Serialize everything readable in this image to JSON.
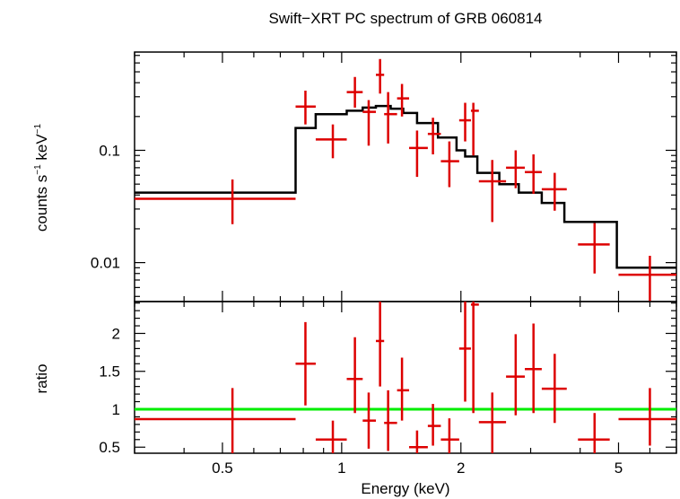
{
  "title": "Swift−XRT PC spectrum of GRB 060814",
  "chart_data": [
    {
      "type": "line",
      "panel": "spectrum",
      "title": "Swift−XRT PC spectrum of GRB 060814",
      "xlabel": "Energy (keV)",
      "ylabel_main": "counts s",
      "ylabel_sup1": "−1",
      "ylabel_mid": " keV",
      "ylabel_sup2": "−1",
      "xscale": "log",
      "yscale": "log",
      "xlim": [
        0.3,
        7.0
      ],
      "ylim": [
        0.0045,
        0.75
      ],
      "yticks_major": [
        {
          "value": 0.01,
          "label": "0.01"
        },
        {
          "value": 0.1,
          "label": "0.1"
        }
      ],
      "model_color": "#000000",
      "data_color": "#dd0000",
      "model_steps": [
        {
          "x0": 0.3,
          "x1": 0.765,
          "y": 0.042
        },
        {
          "x0": 0.765,
          "x1": 0.86,
          "y": 0.158
        },
        {
          "x0": 0.86,
          "x1": 1.03,
          "y": 0.21
        },
        {
          "x0": 1.03,
          "x1": 1.13,
          "y": 0.225
        },
        {
          "x0": 1.13,
          "x1": 1.22,
          "y": 0.24
        },
        {
          "x0": 1.22,
          "x1": 1.33,
          "y": 0.248
        },
        {
          "x0": 1.33,
          "x1": 1.43,
          "y": 0.235
        },
        {
          "x0": 1.43,
          "x1": 1.55,
          "y": 0.215
        },
        {
          "x0": 1.55,
          "x1": 1.75,
          "y": 0.175
        },
        {
          "x0": 1.75,
          "x1": 1.95,
          "y": 0.13
        },
        {
          "x0": 1.95,
          "x1": 2.05,
          "y": 0.1
        },
        {
          "x0": 2.05,
          "x1": 2.2,
          "y": 0.088
        },
        {
          "x0": 2.2,
          "x1": 2.5,
          "y": 0.063
        },
        {
          "x0": 2.5,
          "x1": 2.8,
          "y": 0.05
        },
        {
          "x0": 2.8,
          "x1": 3.2,
          "y": 0.042
        },
        {
          "x0": 3.2,
          "x1": 3.65,
          "y": 0.034
        },
        {
          "x0": 3.65,
          "x1": 4.95,
          "y": 0.023
        },
        {
          "x0": 4.95,
          "x1": 7.0,
          "y": 0.009
        }
      ],
      "points": [
        {
          "x": 0.53,
          "xlo": 0.3,
          "xhi": 0.765,
          "y": 0.037,
          "ylo": 0.022,
          "yhi": 0.055
        },
        {
          "x": 0.81,
          "xlo": 0.765,
          "xhi": 0.86,
          "y": 0.245,
          "ylo": 0.17,
          "yhi": 0.34
        },
        {
          "x": 0.95,
          "xlo": 0.86,
          "xhi": 1.03,
          "y": 0.125,
          "ylo": 0.085,
          "yhi": 0.17
        },
        {
          "x": 1.08,
          "xlo": 1.03,
          "xhi": 1.13,
          "y": 0.33,
          "ylo": 0.24,
          "yhi": 0.45
        },
        {
          "x": 1.17,
          "xlo": 1.13,
          "xhi": 1.22,
          "y": 0.22,
          "ylo": 0.11,
          "yhi": 0.28
        },
        {
          "x": 1.25,
          "xlo": 1.22,
          "xhi": 1.28,
          "y": 0.47,
          "ylo": 0.32,
          "yhi": 0.65
        },
        {
          "x": 1.31,
          "xlo": 1.28,
          "xhi": 1.38,
          "y": 0.21,
          "ylo": 0.115,
          "yhi": 0.33
        },
        {
          "x": 1.42,
          "xlo": 1.38,
          "xhi": 1.48,
          "y": 0.29,
          "ylo": 0.2,
          "yhi": 0.39
        },
        {
          "x": 1.55,
          "xlo": 1.48,
          "xhi": 1.65,
          "y": 0.105,
          "ylo": 0.058,
          "yhi": 0.15
        },
        {
          "x": 1.7,
          "xlo": 1.65,
          "xhi": 1.78,
          "y": 0.14,
          "ylo": 0.092,
          "yhi": 0.195
        },
        {
          "x": 1.87,
          "xlo": 1.78,
          "xhi": 1.98,
          "y": 0.08,
          "ylo": 0.047,
          "yhi": 0.12
        },
        {
          "x": 2.05,
          "xlo": 1.98,
          "xhi": 2.12,
          "y": 0.185,
          "ylo": 0.12,
          "yhi": 0.265
        },
        {
          "x": 2.15,
          "xlo": 2.12,
          "xhi": 2.22,
          "y": 0.225,
          "ylo": 0.09,
          "yhi": 0.265
        },
        {
          "x": 2.4,
          "xlo": 2.22,
          "xhi": 2.6,
          "y": 0.053,
          "ylo": 0.023,
          "yhi": 0.082
        },
        {
          "x": 2.75,
          "xlo": 2.6,
          "xhi": 2.9,
          "y": 0.07,
          "ylo": 0.046,
          "yhi": 0.1
        },
        {
          "x": 3.05,
          "xlo": 2.9,
          "xhi": 3.2,
          "y": 0.064,
          "ylo": 0.041,
          "yhi": 0.092
        },
        {
          "x": 3.45,
          "xlo": 3.2,
          "xhi": 3.7,
          "y": 0.045,
          "ylo": 0.029,
          "yhi": 0.063
        },
        {
          "x": 4.35,
          "xlo": 3.95,
          "xhi": 4.75,
          "y": 0.0145,
          "ylo": 0.008,
          "yhi": 0.0225
        },
        {
          "x": 6.0,
          "xlo": 5.0,
          "xhi": 7.0,
          "y": 0.0078,
          "ylo": 0.0045,
          "yhi": 0.0115
        }
      ]
    },
    {
      "type": "scatter",
      "panel": "ratio",
      "xlabel": "Energy (keV)",
      "ylabel": "ratio",
      "xscale": "log",
      "yscale": "linear",
      "xlim": [
        0.3,
        7.0
      ],
      "ylim": [
        0.42,
        2.42
      ],
      "yticks_major": [
        {
          "value": 0.5,
          "label": "0.5"
        },
        {
          "value": 1,
          "label": "1"
        },
        {
          "value": 1.5,
          "label": "1.5"
        },
        {
          "value": 2,
          "label": "2"
        }
      ],
      "reference_line": {
        "y": 1.0,
        "color": "#00ee00"
      },
      "points": [
        {
          "x": 0.53,
          "xlo": 0.3,
          "xhi": 0.765,
          "y": 0.87,
          "ylo": 0.42,
          "yhi": 1.28
        },
        {
          "x": 0.81,
          "xlo": 0.765,
          "xhi": 0.86,
          "y": 1.6,
          "ylo": 1.05,
          "yhi": 2.15
        },
        {
          "x": 0.95,
          "xlo": 0.86,
          "xhi": 1.03,
          "y": 0.6,
          "ylo": 0.42,
          "yhi": 0.85
        },
        {
          "x": 1.08,
          "xlo": 1.03,
          "xhi": 1.13,
          "y": 1.4,
          "ylo": 0.95,
          "yhi": 1.95
        },
        {
          "x": 1.17,
          "xlo": 1.13,
          "xhi": 1.22,
          "y": 0.85,
          "ylo": 0.48,
          "yhi": 1.22
        },
        {
          "x": 1.25,
          "xlo": 1.22,
          "xhi": 1.28,
          "y": 1.9,
          "ylo": 1.3,
          "yhi": 2.42
        },
        {
          "x": 1.31,
          "xlo": 1.28,
          "xhi": 1.38,
          "y": 0.82,
          "ylo": 0.45,
          "yhi": 1.25
        },
        {
          "x": 1.42,
          "xlo": 1.38,
          "xhi": 1.48,
          "y": 1.25,
          "ylo": 0.85,
          "yhi": 1.68
        },
        {
          "x": 1.55,
          "xlo": 1.48,
          "xhi": 1.65,
          "y": 0.5,
          "ylo": 0.42,
          "yhi": 0.72
        },
        {
          "x": 1.7,
          "xlo": 1.65,
          "xhi": 1.78,
          "y": 0.78,
          "ylo": 0.52,
          "yhi": 1.07
        },
        {
          "x": 1.87,
          "xlo": 1.78,
          "xhi": 1.98,
          "y": 0.6,
          "ylo": 0.42,
          "yhi": 0.88
        },
        {
          "x": 2.05,
          "xlo": 1.98,
          "xhi": 2.12,
          "y": 1.8,
          "ylo": 1.1,
          "yhi": 2.42
        },
        {
          "x": 2.15,
          "xlo": 2.12,
          "xhi": 2.22,
          "y": 2.38,
          "ylo": 0.95,
          "yhi": 2.42
        },
        {
          "x": 2.4,
          "xlo": 2.22,
          "xhi": 2.6,
          "y": 0.83,
          "ylo": 0.42,
          "yhi": 1.22
        },
        {
          "x": 2.75,
          "xlo": 2.6,
          "xhi": 2.9,
          "y": 1.43,
          "ylo": 0.92,
          "yhi": 1.99
        },
        {
          "x": 3.05,
          "xlo": 2.9,
          "xhi": 3.2,
          "y": 1.53,
          "ylo": 0.95,
          "yhi": 2.13
        },
        {
          "x": 3.45,
          "xlo": 3.2,
          "xhi": 3.7,
          "y": 1.27,
          "ylo": 0.82,
          "yhi": 1.73
        },
        {
          "x": 4.35,
          "xlo": 3.95,
          "xhi": 4.75,
          "y": 0.6,
          "ylo": 0.42,
          "yhi": 0.95
        },
        {
          "x": 6.0,
          "xlo": 5.0,
          "xhi": 7.0,
          "y": 0.87,
          "ylo": 0.52,
          "yhi": 1.28
        }
      ]
    }
  ],
  "x_axis": {
    "label": "Energy (keV)",
    "ticks_major": [
      {
        "value": 0.5,
        "label": "0.5"
      },
      {
        "value": 1,
        "label": "1"
      },
      {
        "value": 2,
        "label": "2"
      },
      {
        "value": 5,
        "label": "5"
      }
    ],
    "ticks_minor": [
      0.3,
      0.4,
      0.6,
      0.7,
      0.8,
      0.9,
      3,
      4,
      6,
      7
    ]
  }
}
